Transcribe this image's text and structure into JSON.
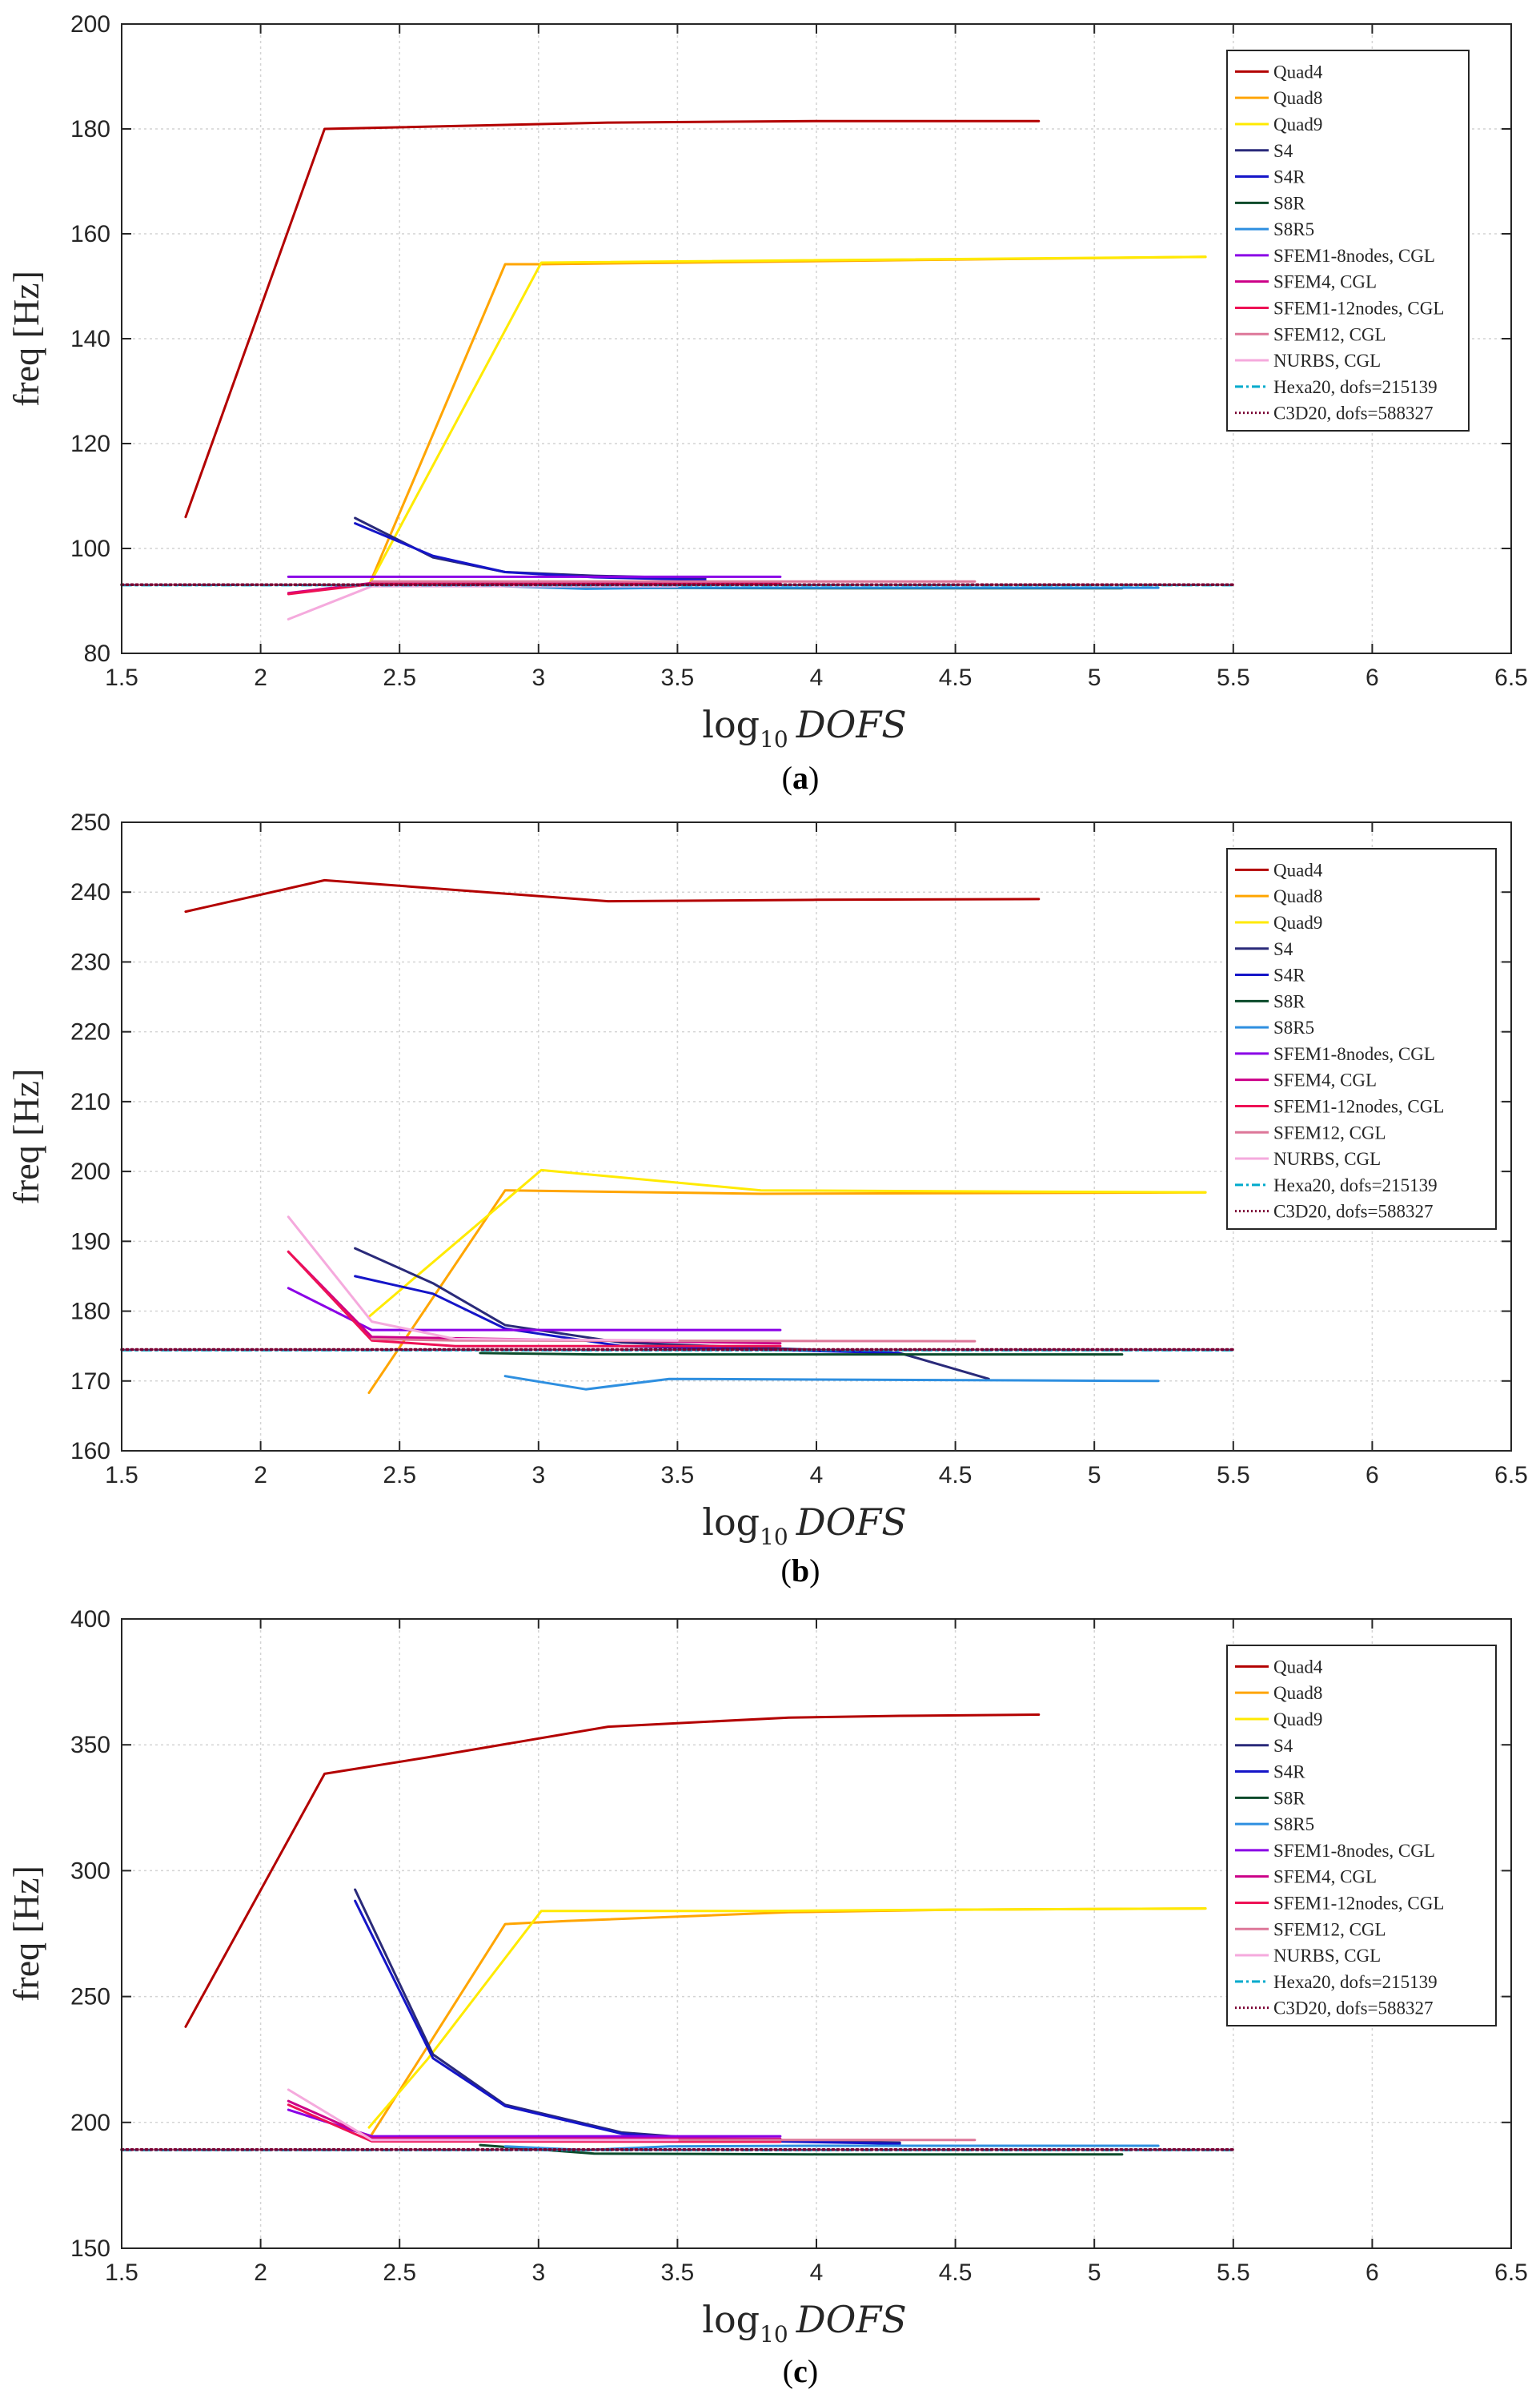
{
  "colors": {
    "Quad4": "#b30000",
    "Quad8": "#ffa500",
    "Quad9": "#ffea00",
    "S4": "#2a2a7a",
    "S4R": "#1515c8",
    "S8R": "#0a4a2a",
    "S8R5": "#2e8fe0",
    "SFEM1-8nodes, CGL": "#8a00e6",
    "SFEM4, CGL": "#cc0088",
    "SFEM1-12nodes, CGL": "#ee1155",
    "SFEM12, CGL": "#dd7799",
    "NURBS, CGL": "#f5aadd",
    "Hexa20, dofs=215139": "#00aacc",
    "C3D20, dofs=588327": "#7a0033"
  },
  "chart_data": [
    {
      "type": "line",
      "caption_open": "(",
      "caption": "a",
      "caption_close": ")",
      "xlabel_prefix": "log",
      "xlabel_sub": "10",
      "xlabel_main": "DOFS",
      "ylabel": "freq [Hz]",
      "xlim": [
        1.5,
        6.5
      ],
      "ylim": [
        80,
        200
      ],
      "xticks": [
        1.5,
        2,
        2.5,
        3,
        3.5,
        4,
        4.5,
        5,
        5.5,
        6,
        6.5
      ],
      "yticks": [
        80,
        100,
        120,
        140,
        160,
        180,
        200
      ],
      "grid": true,
      "legend_position": "top-right",
      "series": [
        {
          "name": "Quad4",
          "x": [
            1.73,
            2.23,
            3.25,
            4.0,
            4.8
          ],
          "y": [
            106,
            180,
            181.2,
            181.5,
            181.5
          ]
        },
        {
          "name": "Quad8",
          "x": [
            2.39,
            2.88,
            3.0,
            5.4
          ],
          "y": [
            93,
            154.2,
            154.2,
            155.6
          ]
        },
        {
          "name": "Quad9",
          "x": [
            2.39,
            3.01,
            5.4
          ],
          "y": [
            93,
            154.5,
            155.6
          ]
        },
        {
          "name": "S4",
          "x": [
            2.34,
            2.62,
            2.88,
            3.2,
            3.6
          ],
          "y": [
            105.8,
            98.3,
            95.5,
            94.8,
            94.3
          ]
        },
        {
          "name": "S4R",
          "x": [
            2.34,
            2.62,
            2.88,
            3.2,
            3.6
          ],
          "y": [
            104.8,
            98.6,
            95.5,
            94.5,
            94.0
          ]
        },
        {
          "name": "S8R",
          "x": [
            2.79,
            3.2,
            4.0,
            5.1
          ],
          "y": [
            93.2,
            92.5,
            92.4,
            92.4
          ]
        },
        {
          "name": "S8R5",
          "x": [
            2.88,
            3.17,
            3.47,
            4.0,
            5.23
          ],
          "y": [
            92.8,
            92.3,
            92.5,
            92.5,
            92.5
          ]
        },
        {
          "name": "SFEM1-8nodes, CGL",
          "x": [
            2.1,
            3.87
          ],
          "y": [
            94.6,
            94.6
          ]
        },
        {
          "name": "SFEM4, CGL",
          "x": [
            2.1,
            2.4,
            3.87
          ],
          "y": [
            91.5,
            93.4,
            93.4
          ]
        },
        {
          "name": "SFEM1-12nodes, CGL",
          "x": [
            2.1,
            2.4,
            3.87
          ],
          "y": [
            91.3,
            93.2,
            93.2
          ]
        },
        {
          "name": "SFEM12, CGL",
          "x": [
            2.4,
            4.57
          ],
          "y": [
            93.7,
            93.7
          ]
        },
        {
          "name": "NURBS, CGL",
          "x": [
            2.1,
            2.4,
            3.5
          ],
          "y": [
            86.5,
            92.8,
            92.8
          ]
        },
        {
          "name": "Hexa20, dofs=215139",
          "x": [
            1.5,
            5.5
          ],
          "y": [
            93.0,
            93.0
          ]
        },
        {
          "name": "C3D20, dofs=588327",
          "x": [
            1.5,
            5.5
          ],
          "y": [
            93.1,
            93.1
          ]
        }
      ]
    },
    {
      "type": "line",
      "caption_open": "(",
      "caption": "b",
      "caption_close": ")",
      "xlabel_prefix": "log",
      "xlabel_sub": "10",
      "xlabel_main": "DOFS",
      "ylabel": "freq [Hz]",
      "xlim": [
        1.5,
        6.5
      ],
      "ylim": [
        160,
        250
      ],
      "xticks": [
        1.5,
        2,
        2.5,
        3,
        3.5,
        4,
        4.5,
        5,
        5.5,
        6,
        6.5
      ],
      "yticks": [
        160,
        170,
        180,
        190,
        200,
        210,
        220,
        230,
        240,
        250
      ],
      "grid": true,
      "legend_position": "top-right",
      "series": [
        {
          "name": "Quad4",
          "x": [
            1.73,
            2.23,
            3.25,
            4.0,
            4.8
          ],
          "y": [
            237.2,
            241.7,
            238.7,
            238.9,
            239.0
          ]
        },
        {
          "name": "Quad8",
          "x": [
            2.39,
            2.88,
            3.8,
            5.4
          ],
          "y": [
            168.3,
            197.3,
            196.8,
            197.0
          ]
        },
        {
          "name": "Quad9",
          "x": [
            2.39,
            3.01,
            3.8,
            5.4
          ],
          "y": [
            179.2,
            200.2,
            197.3,
            197.0
          ]
        },
        {
          "name": "S4",
          "x": [
            2.34,
            2.62,
            2.88,
            3.3,
            4.3,
            4.62
          ],
          "y": [
            189.0,
            184.0,
            178.0,
            175.5,
            174.0,
            170.3
          ]
        },
        {
          "name": "S4R",
          "x": [
            2.34,
            2.62,
            2.88,
            3.3,
            4.3
          ],
          "y": [
            185.0,
            182.5,
            177.5,
            175.0,
            174.0
          ]
        },
        {
          "name": "S8R",
          "x": [
            2.79,
            3.2,
            4.0,
            5.1
          ],
          "y": [
            174.0,
            173.8,
            173.8,
            173.8
          ]
        },
        {
          "name": "S8R5",
          "x": [
            2.88,
            3.17,
            3.47,
            4.0,
            5.23
          ],
          "y": [
            170.7,
            168.8,
            170.3,
            170.2,
            170.0
          ]
        },
        {
          "name": "SFEM1-8nodes, CGL",
          "x": [
            2.1,
            2.4,
            3.87
          ],
          "y": [
            183.3,
            177.3,
            177.3
          ]
        },
        {
          "name": "SFEM4, CGL",
          "x": [
            2.1,
            2.4,
            3.87
          ],
          "y": [
            188.5,
            176.3,
            175.4
          ]
        },
        {
          "name": "SFEM1-12nodes, CGL",
          "x": [
            2.1,
            2.4,
            2.7,
            3.87
          ],
          "y": [
            188.5,
            175.8,
            175.0,
            175.0
          ]
        },
        {
          "name": "SFEM12, CGL",
          "x": [
            2.4,
            2.7,
            4.57
          ],
          "y": [
            176.0,
            175.8,
            175.7
          ]
        },
        {
          "name": "NURBS, CGL",
          "x": [
            2.1,
            2.4,
            2.7,
            3.5
          ],
          "y": [
            193.5,
            178.5,
            176.0,
            175.8
          ]
        },
        {
          "name": "Hexa20, dofs=215139",
          "x": [
            1.5,
            5.5
          ],
          "y": [
            174.4,
            174.4
          ]
        },
        {
          "name": "C3D20, dofs=588327",
          "x": [
            1.5,
            5.5
          ],
          "y": [
            174.5,
            174.5
          ]
        }
      ]
    },
    {
      "type": "line",
      "caption_open": "(",
      "caption": "c",
      "caption_close": ")",
      "xlabel_prefix": "log",
      "xlabel_sub": "10",
      "xlabel_main": "DOFS",
      "ylabel": "freq [Hz]",
      "xlim": [
        1.5,
        6.5
      ],
      "ylim": [
        150,
        400
      ],
      "xticks": [
        1.5,
        2,
        2.5,
        3,
        3.5,
        4,
        4.5,
        5,
        5.5,
        6,
        6.5
      ],
      "yticks": [
        150,
        200,
        250,
        300,
        350,
        400
      ],
      "grid": true,
      "legend_position": "top-right",
      "series": [
        {
          "name": "Quad4",
          "x": [
            1.73,
            2.23,
            2.6,
            3.25,
            3.9,
            4.3,
            4.8
          ],
          "y": [
            238.0,
            338.5,
            345.0,
            357.2,
            360.8,
            361.5,
            362.0
          ]
        },
        {
          "name": "Quad8",
          "x": [
            2.39,
            2.6,
            2.88,
            3.1,
            3.9,
            4.5,
            5.4
          ],
          "y": [
            193.5,
            230.0,
            278.8,
            280.0,
            283.5,
            284.5,
            285.0
          ]
        },
        {
          "name": "Quad9",
          "x": [
            2.39,
            2.6,
            3.01,
            3.8,
            4.5,
            5.4
          ],
          "y": [
            198.0,
            225.0,
            284.0,
            284.0,
            284.5,
            285.0
          ]
        },
        {
          "name": "S4",
          "x": [
            2.34,
            2.62,
            2.88,
            3.3,
            3.6,
            4.3
          ],
          "y": [
            292.5,
            227.0,
            207.0,
            196.0,
            193.5,
            192.0
          ]
        },
        {
          "name": "S4R",
          "x": [
            2.34,
            2.62,
            2.88,
            3.3,
            3.6,
            4.3
          ],
          "y": [
            288.0,
            225.5,
            206.5,
            195.5,
            193.0,
            191.5
          ]
        },
        {
          "name": "S8R",
          "x": [
            2.79,
            3.2,
            4.0,
            5.1
          ],
          "y": [
            191.0,
            187.6,
            187.3,
            187.3
          ]
        },
        {
          "name": "S8R5",
          "x": [
            2.88,
            3.17,
            3.47,
            4.0,
            5.23
          ],
          "y": [
            190.5,
            189.0,
            190.5,
            190.7,
            190.7
          ]
        },
        {
          "name": "SFEM1-8nodes, CGL",
          "x": [
            2.1,
            2.4,
            3.87
          ],
          "y": [
            205.0,
            194.5,
            194.5
          ]
        },
        {
          "name": "SFEM4, CGL",
          "x": [
            2.1,
            2.4,
            3.87
          ],
          "y": [
            208.5,
            193.8,
            193.5
          ]
        },
        {
          "name": "SFEM1-12nodes, CGL",
          "x": [
            2.1,
            2.4,
            3.87
          ],
          "y": [
            207.0,
            192.5,
            192.3
          ]
        },
        {
          "name": "SFEM12, CGL",
          "x": [
            2.4,
            4.57
          ],
          "y": [
            193.0,
            193.0
          ]
        },
        {
          "name": "NURBS, CGL",
          "x": [
            2.1,
            2.4,
            3.5
          ],
          "y": [
            213.0,
            193.0,
            193.0
          ]
        },
        {
          "name": "Hexa20, dofs=215139",
          "x": [
            1.5,
            5.5
          ],
          "y": [
            189.0,
            189.0
          ]
        },
        {
          "name": "C3D20, dofs=588327",
          "x": [
            1.5,
            5.5
          ],
          "y": [
            189.2,
            189.2
          ]
        }
      ]
    }
  ]
}
